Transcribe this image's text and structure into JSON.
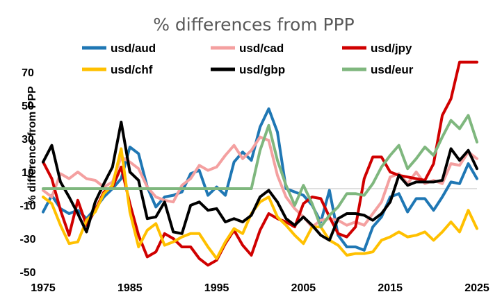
{
  "chart_data": {
    "type": "line",
    "title": "% differences from PPP",
    "xlabel": "",
    "ylabel": "% difference from PPP",
    "x_ticks": [
      1975,
      1985,
      1995,
      2005,
      2015,
      2025
    ],
    "y_ticks": [
      70,
      50,
      30,
      10,
      -10,
      -30,
      -50
    ],
    "xlim": [
      1975,
      2025
    ],
    "ylim": [
      -55,
      78
    ],
    "grid": false,
    "legend_placement": "top",
    "x": [
      1975,
      1976,
      1977,
      1978,
      1979,
      1980,
      1981,
      1982,
      1983,
      1984,
      1985,
      1986,
      1987,
      1988,
      1989,
      1990,
      1991,
      1992,
      1993,
      1994,
      1995,
      1996,
      1997,
      1998,
      1999,
      2000,
      2001,
      2002,
      2003,
      2004,
      2005,
      2006,
      2007,
      2008,
      2009,
      2010,
      2011,
      2012,
      2013,
      2014,
      2015,
      2016,
      2017,
      2018,
      2019,
      2020,
      2021,
      2022,
      2023,
      2024,
      2025
    ],
    "series": [
      {
        "name": "usd/aud",
        "color": "#1F77B4",
        "values": [
          -14,
          -4,
          -12,
          -15,
          -13,
          -18,
          -12,
          -5,
          0,
          6,
          25,
          21,
          1,
          -11,
          -5,
          -4,
          -2,
          9,
          11,
          -4,
          1,
          -4,
          16,
          22,
          17,
          37,
          48,
          34,
          0,
          -2,
          -4,
          -10,
          -20,
          -1,
          -28,
          -35,
          -35,
          -37,
          -23,
          -17,
          -5,
          -3,
          -14,
          -6,
          -6,
          -13,
          -5,
          4,
          3,
          15,
          6
        ]
      },
      {
        "name": "usd/cad",
        "color": "#F4A0A0",
        "values": [
          -1,
          -5,
          9,
          6,
          10,
          6,
          5,
          1,
          4,
          19,
          16,
          12,
          1,
          -5,
          -7,
          -8,
          2,
          6,
          14,
          11,
          13,
          20,
          26,
          18,
          23,
          31,
          29,
          8,
          -5,
          -12,
          -17,
          -23,
          -19,
          -18,
          -19,
          -22,
          -20,
          -22,
          -15,
          -8,
          7,
          9,
          3,
          10,
          3,
          5,
          3,
          15,
          14,
          22,
          18
        ]
      },
      {
        "name": "usd/jpy",
        "color": "#D00000",
        "values": [
          16,
          6,
          -13,
          -28,
          -7,
          -22,
          -13,
          -2,
          1,
          13,
          -9,
          -28,
          -41,
          -38,
          -27,
          -30,
          -35,
          -35,
          -42,
          -46,
          -43,
          -33,
          -25,
          -34,
          -40,
          -25,
          -15,
          -18,
          -20,
          -23,
          -9,
          -5,
          -6,
          -17,
          -27,
          -29,
          -23,
          6,
          19,
          19,
          10,
          8,
          7,
          6,
          5,
          15,
          44,
          54,
          76,
          76,
          76
        ]
      },
      {
        "name": "usd/chf",
        "color": "#FFC000",
        "values": [
          -5,
          -9,
          -22,
          -33,
          -32,
          -19,
          -14,
          -3,
          2,
          24,
          -14,
          -35,
          -25,
          -21,
          -34,
          -32,
          -29,
          -27,
          -27,
          -35,
          -42,
          -32,
          -24,
          -27,
          -15,
          -8,
          -5,
          -17,
          -22,
          -28,
          -33,
          -23,
          -23,
          -31,
          -34,
          -40,
          -39,
          -39,
          -38,
          -31,
          -29,
          -26,
          -29,
          -28,
          -26,
          -31,
          -26,
          -20,
          -26,
          -13,
          -24
        ]
      },
      {
        "name": "usd/gbp",
        "color": "#000000",
        "values": [
          16,
          26,
          4,
          -5,
          -15,
          -26,
          -8,
          3,
          13,
          40,
          10,
          5,
          -18,
          -17,
          -8,
          -26,
          -27,
          -10,
          -8,
          -13,
          -12,
          -20,
          -18,
          -20,
          -16,
          -5,
          -1,
          -8,
          -18,
          -22,
          -17,
          -22,
          -28,
          -31,
          -18,
          -15,
          -15,
          -16,
          -19,
          -15,
          -8,
          8,
          2,
          4,
          4,
          4,
          5,
          24,
          17,
          23,
          12
        ]
      },
      {
        "name": "usd/eur",
        "color": "#7FB77E",
        "values": [
          0,
          0,
          0,
          0,
          0,
          0,
          0,
          0,
          0,
          0,
          0,
          0,
          0,
          0,
          0,
          0,
          0,
          0,
          0,
          0,
          0,
          0,
          0,
          0,
          0,
          23,
          38,
          17,
          2,
          -10,
          2,
          -9,
          -23,
          -16,
          -11,
          -3,
          -3,
          -4,
          3,
          13,
          20,
          26,
          12,
          18,
          25,
          20,
          31,
          41,
          36,
          44,
          28
        ]
      }
    ]
  }
}
